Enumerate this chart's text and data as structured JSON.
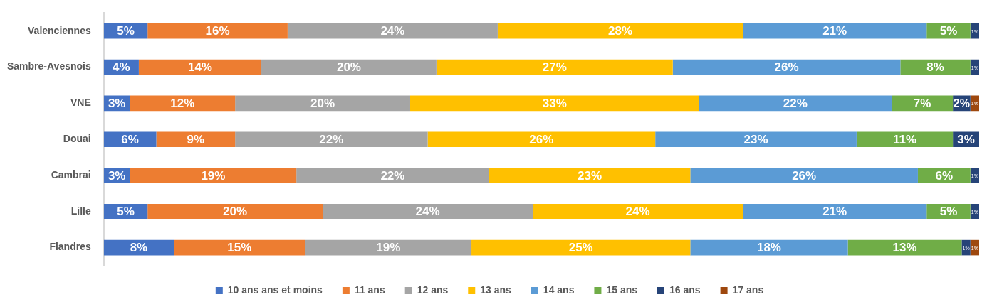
{
  "chart_data": {
    "type": "bar",
    "orientation": "horizontal",
    "stacked": true,
    "categories": [
      "Valenciennes",
      "Sambre-Avesnois",
      "VNE",
      "Douai",
      "Cambrai",
      "Lille",
      "Flandres"
    ],
    "xlim": [
      0,
      100
    ],
    "tick_labels": "y",
    "legend": "bottom",
    "series": [
      {
        "name": "10 ans ans et moins",
        "color": "#4472c4",
        "values": [
          5,
          4,
          3,
          6,
          3,
          5,
          8
        ],
        "value_labels": [
          "5%",
          "4%",
          "3%",
          "6%",
          "3%",
          "5%",
          "8%"
        ]
      },
      {
        "name": "11 ans",
        "color": "#ed7d31",
        "values": [
          16,
          14,
          12,
          9,
          19,
          20,
          15
        ],
        "value_labels": [
          "16%",
          "14%",
          "12%",
          "9%",
          "19%",
          "20%",
          "15%"
        ]
      },
      {
        "name": "12 ans",
        "color": "#a5a5a5",
        "values": [
          24,
          20,
          20,
          22,
          22,
          24,
          19
        ],
        "value_labels": [
          "24%",
          "20%",
          "20%",
          "22%",
          "22%",
          "24%",
          "19%"
        ]
      },
      {
        "name": "13 ans",
        "color": "#ffc000",
        "values": [
          28,
          27,
          33,
          26,
          23,
          24,
          25
        ],
        "value_labels": [
          "28%",
          "27%",
          "33%",
          "26%",
          "23%",
          "24%",
          "25%"
        ]
      },
      {
        "name": "14 ans",
        "color": "#5b9bd5",
        "values": [
          21,
          26,
          22,
          23,
          26,
          21,
          18
        ],
        "value_labels": [
          "21%",
          "26%",
          "22%",
          "23%",
          "26%",
          "21%",
          "18%"
        ]
      },
      {
        "name": "15 ans",
        "color": "#70ad47",
        "values": [
          5,
          8,
          7,
          11,
          6,
          5,
          13
        ],
        "value_labels": [
          "5%",
          "8%",
          "7%",
          "11%",
          "6%",
          "5%",
          "13%"
        ]
      },
      {
        "name": "16 ans",
        "color": "#264478",
        "values": [
          1,
          1,
          2,
          3,
          1,
          1,
          1
        ],
        "value_labels": [
          "1%",
          "1%",
          "2%",
          "3%",
          "1%",
          "1%",
          "1%"
        ]
      },
      {
        "name": "17 ans",
        "color": "#9e480e",
        "values": [
          null,
          null,
          1,
          null,
          null,
          null,
          1
        ],
        "value_labels": [
          null,
          null,
          "1%",
          null,
          null,
          null,
          "1%"
        ]
      }
    ]
  }
}
